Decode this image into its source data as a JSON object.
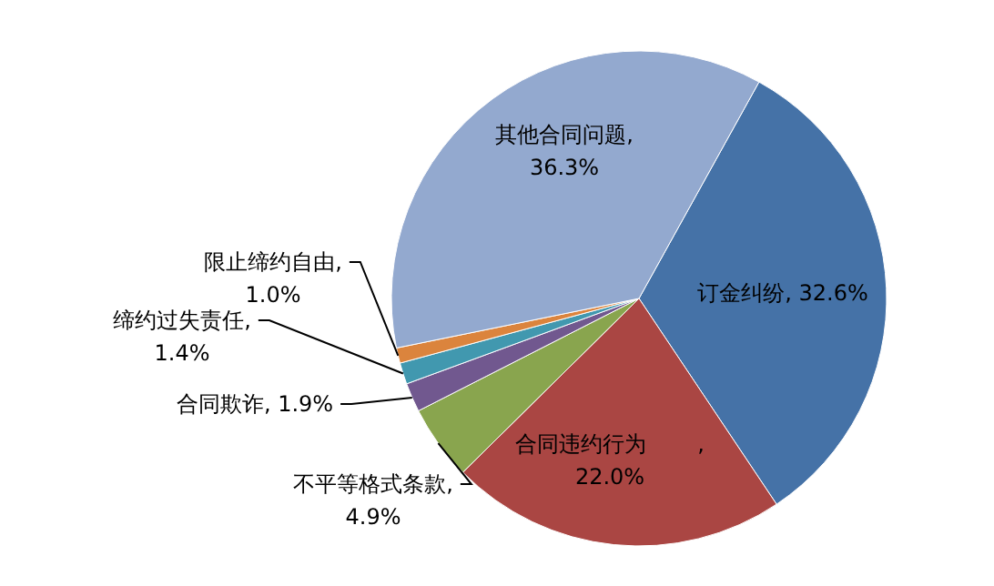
{
  "chart_data": {
    "type": "pie",
    "categories": [
      "订金纠纷",
      "合同违约行为",
      "不平等格式条款",
      "合同欺诈",
      "缔约过失责任",
      "限止缔约自由",
      "其他合同问题"
    ],
    "values": [
      32.6,
      22.0,
      4.9,
      1.9,
      1.4,
      1.0,
      36.3
    ],
    "colors": [
      "#4572a7",
      "#aa4643",
      "#89a54e",
      "#71588f",
      "#4198af",
      "#db843d",
      "#93a9cf"
    ],
    "value_labels": [
      ", 32.6%",
      ",\n22.0%",
      ",\n4.9%",
      ", 1.9%",
      ",\n1.4%",
      ",\n1.0%",
      ",\n36.3%"
    ]
  }
}
